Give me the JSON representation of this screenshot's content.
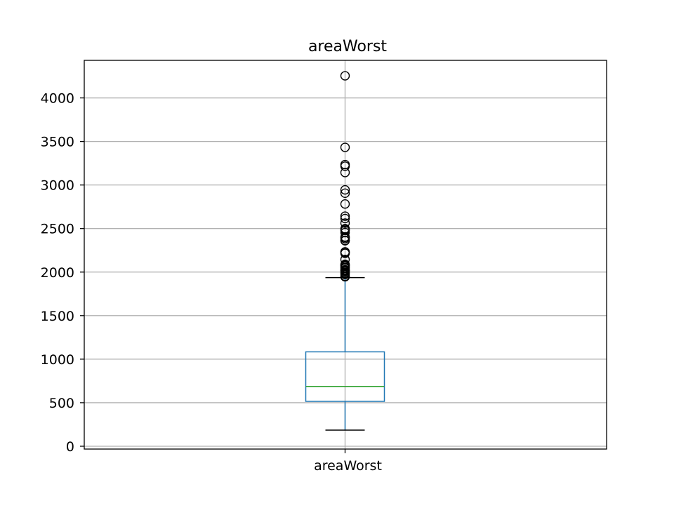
{
  "chart_data": {
    "type": "box",
    "title": "areaWorst",
    "xlabel": "",
    "ylabel": "",
    "categories": [
      "areaWorst"
    ],
    "yticks": [
      0,
      500,
      1000,
      1500,
      2000,
      2500,
      3000,
      3500,
      4000
    ],
    "ylim": [
      -32.4,
      4431.4
    ],
    "grid": true,
    "series": [
      {
        "name": "areaWorst",
        "whisker_low": 185.2,
        "q1": 515.3,
        "median": 686.5,
        "q3": 1084.0,
        "whisker_high": 1937.0,
        "outliers": [
          1946,
          1952,
          1972,
          1986,
          1995,
          2009,
          2019,
          2022,
          2027,
          2044,
          2053,
          2068,
          2073,
          2081,
          2089,
          2145,
          2215,
          2227,
          2232,
          2360,
          2363,
          2384,
          2398,
          2403,
          2453,
          2477,
          2489,
          2499,
          2562,
          2615,
          2642,
          2782,
          2906,
          2944,
          3143,
          3216,
          3234,
          3432,
          4254
        ]
      }
    ],
    "colors": {
      "box": "#1f77b4",
      "median": "#2ca02c",
      "caps": "#000000",
      "outliers": "#000000",
      "grid": "#b0b0b0",
      "axes": "#000000"
    }
  }
}
